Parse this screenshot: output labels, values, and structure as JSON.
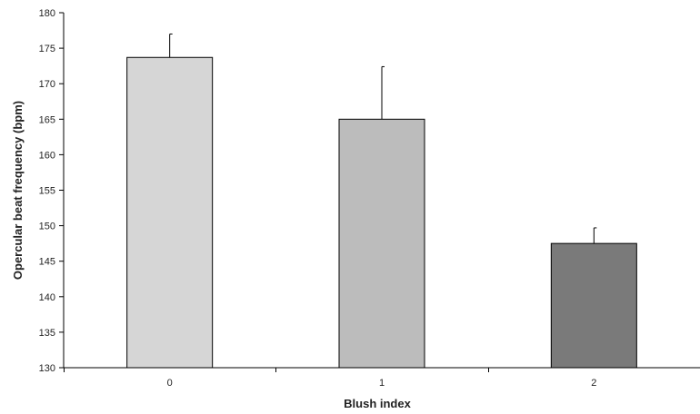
{
  "chart_data": {
    "type": "bar",
    "title": "",
    "xlabel": "Blush index",
    "ylabel": "Opercular beat frequency (bpm)",
    "categories": [
      "0",
      "1",
      "2"
    ],
    "values": [
      173.7,
      165.0,
      147.5
    ],
    "error_upper": [
      177.0,
      172.4,
      149.7
    ],
    "ylim": [
      130,
      180
    ],
    "yticks": [
      "130",
      "135",
      "140",
      "145",
      "150",
      "155",
      "160",
      "165",
      "170",
      "175",
      "180"
    ],
    "grid": false,
    "legend": "none",
    "bar_colors": [
      "#d6d6d6",
      "#bcbcbc",
      "#7a7a7a"
    ]
  }
}
